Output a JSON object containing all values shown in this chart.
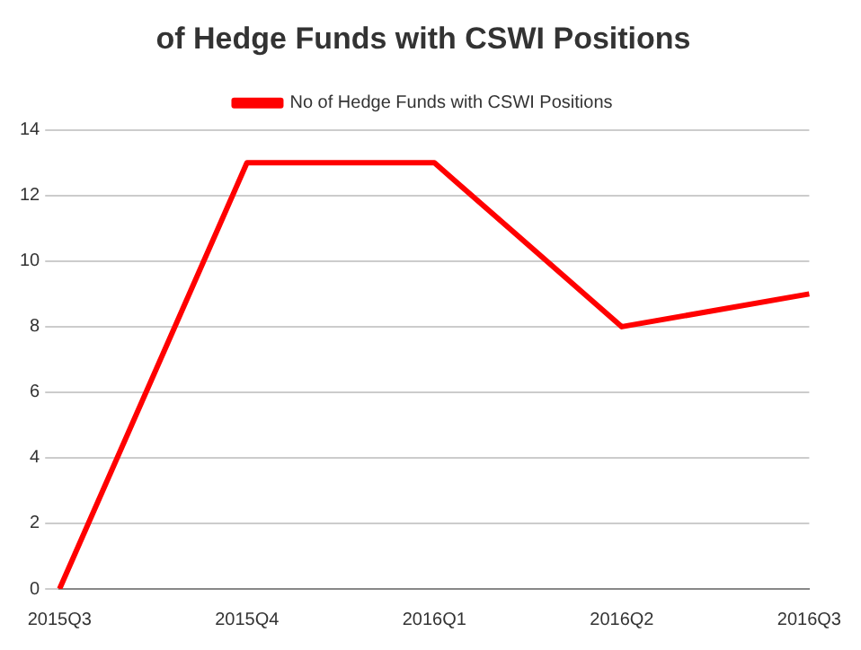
{
  "chart_data": {
    "type": "line",
    "title": "of Hedge Funds with CSWI Positions",
    "categories": [
      "2015Q3",
      "2015Q4",
      "2016Q1",
      "2016Q2",
      "2016Q3"
    ],
    "series": [
      {
        "name": "No of Hedge Funds with CSWI Positions",
        "color": "#ff0000",
        "values": [
          0,
          13,
          13,
          8,
          9
        ]
      }
    ],
    "ylim": [
      0,
      14
    ],
    "yticks": [
      0,
      2,
      4,
      6,
      8,
      10,
      12,
      14
    ],
    "grid": "y",
    "legend": "top",
    "marker": "none",
    "line_style": "solid"
  }
}
